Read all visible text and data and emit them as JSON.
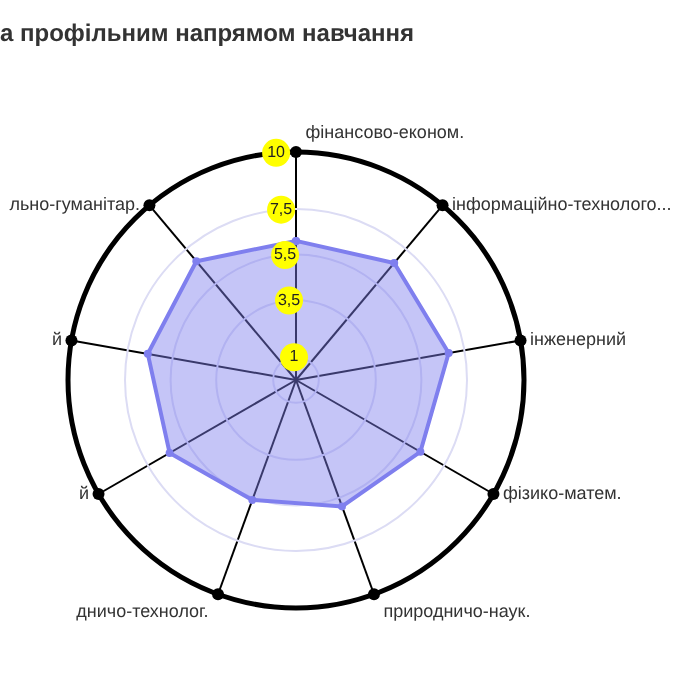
{
  "chart_data": {
    "type": "radar",
    "title": "а профільним напрямом навчання",
    "categories": [
      "фінансово-економ.",
      "інформаційно-технолого...",
      "інженерний",
      "фізико-матем.",
      "природничо-наук.",
      "дничо-технолог.",
      "й",
      "й",
      "льно-гуманітар."
    ],
    "series": [
      {
        "color": "#7f7fee",
        "values": [
          6.1,
          6.7,
          6.8,
          6.3,
          5.9,
          5.6,
          6.4,
          6.6,
          6.8
        ]
      }
    ],
    "ylim": [
      0,
      10
    ],
    "yticks": [
      1,
      {
        "value": 3.5,
        "label": "3,5"
      },
      {
        "value": 5.5,
        "label": "5,5"
      },
      {
        "value": 7.5,
        "label": "7,5"
      },
      10
    ],
    "marker": "circle"
  }
}
